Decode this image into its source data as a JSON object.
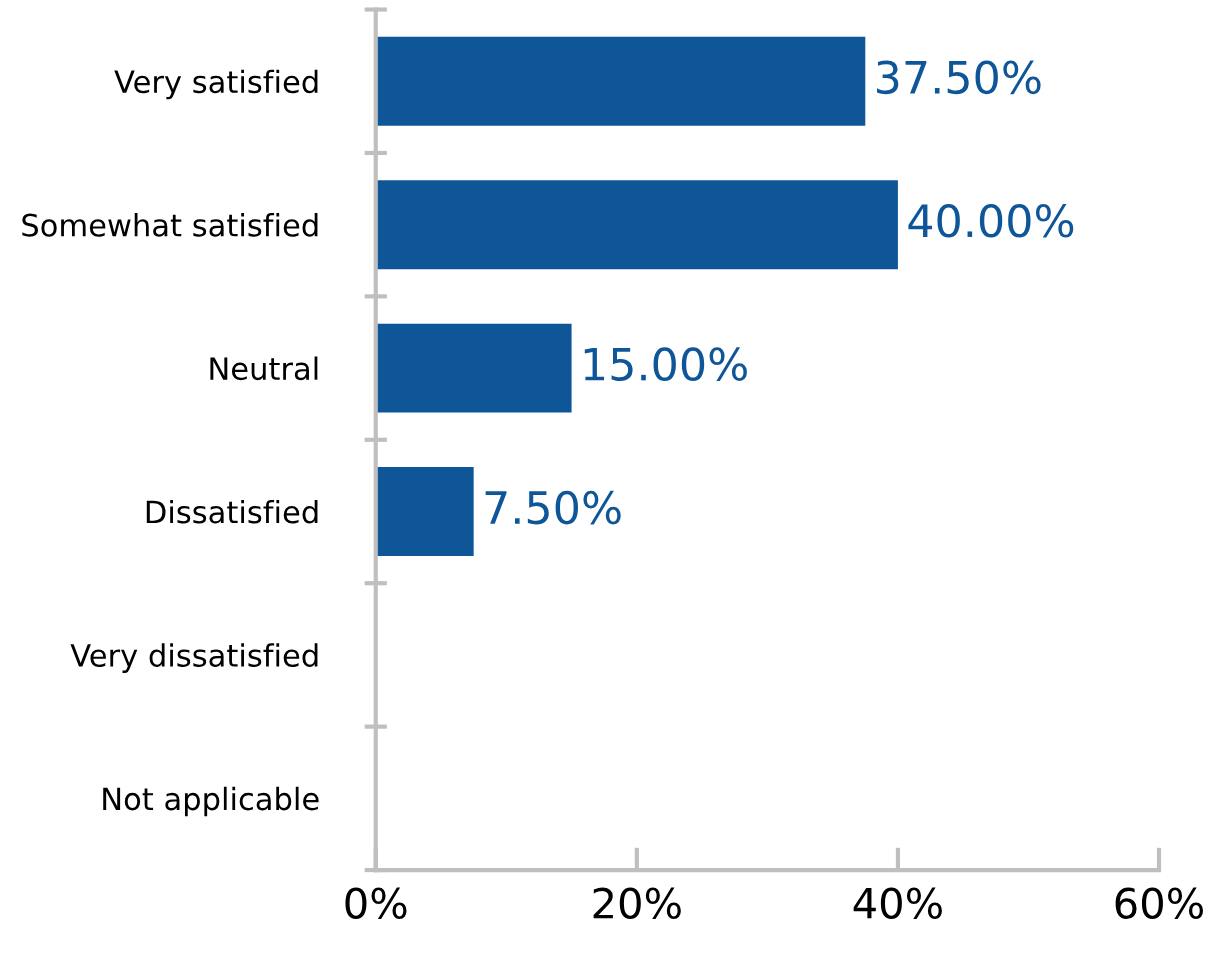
{
  "chart_data": {
    "type": "bar",
    "orientation": "horizontal",
    "categories": [
      "Very satisfied",
      "Somewhat satisfied",
      "Neutral",
      "Dissatisfied",
      "Very dissatisfied",
      "Not applicable"
    ],
    "values": [
      37.5,
      40,
      15,
      7.5,
      0,
      0
    ],
    "value_labels": [
      "37.50%",
      "40.00%",
      "15.00%",
      "7.50%",
      null,
      null
    ],
    "color": "#0f5699",
    "xlim": [
      0,
      60
    ],
    "xticks": [
      {
        "value": 0,
        "label": "0%"
      },
      {
        "value": 20,
        "label": "20%"
      },
      {
        "value": 40,
        "label": "40%"
      },
      {
        "value": 60,
        "label": "60%"
      }
    ],
    "grid": false
  }
}
